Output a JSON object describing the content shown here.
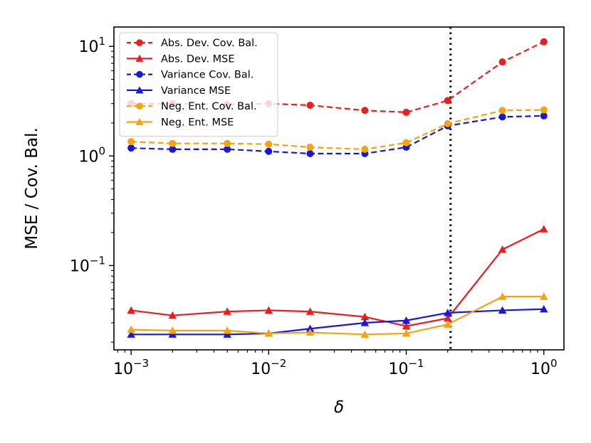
{
  "chart_data": {
    "type": "line",
    "xscale": "log",
    "yscale": "log",
    "xlabel": "δ",
    "ylabel": "MSE / Cov. Bal.",
    "xlim": [
      0.00075,
      1.4
    ],
    "ylim": [
      0.017,
      15
    ],
    "x_ticks": [
      {
        "value": 0.001,
        "base": "10",
        "exp": "−3"
      },
      {
        "value": 0.01,
        "base": "10",
        "exp": "−2"
      },
      {
        "value": 0.1,
        "base": "10",
        "exp": "−1"
      },
      {
        "value": 1,
        "base": "10",
        "exp": "0"
      }
    ],
    "y_ticks": [
      {
        "value": 0.1,
        "base": "10",
        "exp": "−1"
      },
      {
        "value": 1,
        "base": "10",
        "exp": "0"
      },
      {
        "value": 10,
        "base": "10",
        "exp": "1"
      }
    ],
    "vline": {
      "x": 0.21,
      "style": "dotted",
      "color": "#000000"
    },
    "x": [
      0.001,
      0.002,
      0.005,
      0.01,
      0.02,
      0.05,
      0.1,
      0.2,
      0.5,
      1.0
    ],
    "series": [
      {
        "name": "Abs. Dev. Cov. Bal.",
        "color": "#ee1c1c",
        "dashed": true,
        "marker": "circle",
        "values": [
          3.0,
          3.0,
          2.95,
          3.0,
          2.9,
          2.6,
          2.5,
          3.2,
          7.2,
          11.0
        ]
      },
      {
        "name": "Abs. Dev. MSE",
        "color": "#ee1c1c",
        "dashed": false,
        "marker": "triangle",
        "values": [
          0.039,
          0.035,
          0.038,
          0.039,
          0.038,
          0.034,
          0.028,
          0.033,
          0.14,
          0.215
        ]
      },
      {
        "name": "Variance Cov. Bal.",
        "color": "#1818dd",
        "dashed": true,
        "marker": "circle",
        "values": [
          1.18,
          1.15,
          1.15,
          1.1,
          1.05,
          1.05,
          1.2,
          1.88,
          2.27,
          2.32
        ]
      },
      {
        "name": "Variance MSE",
        "color": "#1818dd",
        "dashed": false,
        "marker": "triangle",
        "values": [
          0.0235,
          0.0235,
          0.0235,
          0.024,
          0.0265,
          0.03,
          0.0315,
          0.037,
          0.039,
          0.04
        ]
      },
      {
        "name": "Neg. Ent. Cov. Bal.",
        "color": "#f5a30f",
        "dashed": true,
        "marker": "circle",
        "values": [
          1.35,
          1.3,
          1.3,
          1.28,
          1.2,
          1.15,
          1.32,
          1.97,
          2.6,
          2.63
        ]
      },
      {
        "name": "Neg. Ent. MSE",
        "color": "#f5a30f",
        "dashed": false,
        "marker": "triangle",
        "values": [
          0.026,
          0.0255,
          0.0255,
          0.024,
          0.0245,
          0.0235,
          0.024,
          0.029,
          0.052,
          0.052
        ]
      }
    ],
    "legend_position": "top-left"
  }
}
